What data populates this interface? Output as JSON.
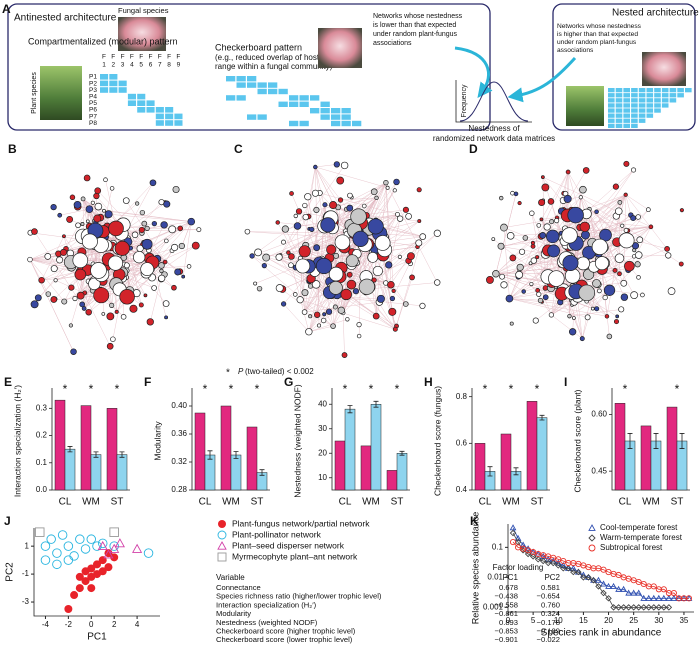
{
  "panel_a": {
    "letter": "A",
    "left_title": "Antinested architecture",
    "fungal_label": "Fungal species",
    "modular_title": "Compartmentalized (modular) pattern",
    "plant_label": "Plant species",
    "col_prefix": "F",
    "cols": [
      "1",
      "2",
      "3",
      "4",
      "5",
      "6",
      "7",
      "8",
      "9"
    ],
    "rows": [
      "P1",
      "P2",
      "P3",
      "P4",
      "P5",
      "P6",
      "P7",
      "P8"
    ],
    "checker_title": "Checkerboard pattern",
    "checker_sub": [
      "(e.g., reduced overlap of host",
      "range within a fungal community)"
    ],
    "lower_text": [
      "Networks whose nestedness",
      "is lower than that expected",
      "under random plant-fungus",
      "associations"
    ],
    "freq_label": "Frequency",
    "dist_label": [
      "Nestedness of",
      "randomized network data matrices"
    ],
    "right_title": "Nested architecture",
    "higher_text": [
      "Networks whose nestedness",
      "is higher than that expected",
      "under random plant-fungus",
      "associations"
    ]
  },
  "network_labels": [
    "B",
    "C",
    "D"
  ],
  "note": [
    "*",
    "P",
    "(two-tailed) < 0.002"
  ],
  "chart_data": [
    {
      "panel": "E",
      "type": "bar",
      "ylabel": "Interaction specialization (H₂′)",
      "categories": [
        "CL",
        "WM",
        "ST"
      ],
      "series": [
        {
          "color": "#e2287f",
          "values": [
            0.33,
            0.31,
            0.3
          ]
        },
        {
          "color": "#8ed4ee",
          "values": [
            0.15,
            0.13,
            0.13
          ],
          "errors": [
            0.01,
            0.01,
            0.01
          ]
        }
      ],
      "annotations": [
        "*",
        "*",
        "*"
      ],
      "ylim": [
        0,
        0.36
      ],
      "yticks": [
        {
          "value": 0,
          "label": "0.0"
        },
        0.1,
        0.2,
        0.3
      ]
    },
    {
      "panel": "F",
      "type": "bar",
      "ylabel": "Modularity",
      "categories": [
        "CL",
        "WM",
        "ST"
      ],
      "series": [
        {
          "color": "#e2287f",
          "values": [
            0.39,
            0.4,
            0.37
          ]
        },
        {
          "color": "#8ed4ee",
          "values": [
            0.33,
            0.33,
            0.305
          ],
          "errors": [
            0.006,
            0.005,
            0.004
          ]
        }
      ],
      "annotations": [
        "*",
        "*",
        "*"
      ],
      "ylim": [
        0.28,
        0.42
      ],
      "yticks": [
        0.28,
        0.32,
        0.36,
        {
          "value": 0.4,
          "label": "0.40"
        }
      ]
    },
    {
      "panel": "G",
      "type": "bar",
      "ylabel": "Nestedness (weighted NODF)",
      "categories": [
        "CL",
        "WM",
        "ST"
      ],
      "series": [
        {
          "color": "#e2287f",
          "values": [
            25,
            23,
            13
          ]
        },
        {
          "color": "#8ed4ee",
          "values": [
            38,
            40,
            20
          ],
          "errors": [
            1.5,
            1.2,
            0.8
          ]
        }
      ],
      "annotations": [
        "*",
        "*",
        "*"
      ],
      "ylim": [
        5,
        45
      ],
      "yticks": [
        10,
        20,
        30,
        40
      ]
    },
    {
      "panel": "H",
      "type": "bar",
      "ylabel": "Checkerboard score (fungus)",
      "categories": [
        "CL",
        "WM",
        "ST"
      ],
      "series": [
        {
          "color": "#e2287f",
          "values": [
            0.6,
            0.64,
            0.78
          ]
        },
        {
          "color": "#8ed4ee",
          "values": [
            0.48,
            0.48,
            0.71
          ],
          "errors": [
            0.02,
            0.015,
            0.01
          ]
        }
      ],
      "annotations": [
        "*",
        "*",
        "*"
      ],
      "ylim": [
        0.4,
        0.82
      ],
      "yticks": [
        0.4,
        0.6,
        0.8
      ]
    },
    {
      "panel": "I",
      "type": "bar",
      "ylabel": "Checkerboard score (plant)",
      "categories": [
        "CL",
        "WM",
        "ST"
      ],
      "series": [
        {
          "color": "#e2287f",
          "values": [
            0.63,
            0.57,
            0.62
          ]
        },
        {
          "color": "#8ed4ee",
          "values": [
            0.53,
            0.53,
            0.53
          ],
          "errors": [
            0.02,
            0.02,
            0.02
          ]
        }
      ],
      "annotations": [
        "*",
        null,
        "*"
      ],
      "ylim": [
        0.4,
        0.66
      ],
      "yticks": [
        0.45,
        {
          "value": 0.6,
          "label": "0.60"
        }
      ]
    },
    {
      "panel": "J",
      "type": "scatter",
      "xlabel": "PC1",
      "ylabel": "PC2",
      "series": [
        {
          "name": "Plant-fungus network/partial network",
          "color": "#e8232a",
          "marker": "circle-filled",
          "x": [
            -2,
            -1,
            -0.5,
            0,
            0.5,
            1,
            1.5,
            0,
            -0.5,
            1,
            0.5,
            -1,
            2,
            1.5,
            0,
            -1.5
          ],
          "y": [
            -3.5,
            -2,
            -1.5,
            -1.2,
            -1,
            -0.8,
            -0.5,
            -0.6,
            -0.8,
            0,
            -0.3,
            -1.2,
            0.2,
            0.5,
            -2,
            -2.5
          ]
        },
        {
          "name": "Plant-pollinator network",
          "color": "#29b5e0",
          "marker": "circle",
          "x": [
            -4,
            -3.5,
            -3,
            -2.5,
            -2,
            -1,
            -0.5,
            0,
            0.5,
            -3,
            -2,
            1,
            2,
            -1.5,
            5,
            -4
          ],
          "y": [
            1,
            1.5,
            0.5,
            1.8,
            1,
            1.5,
            0.8,
            1.5,
            1,
            -0.3,
            0,
            1.2,
            1,
            0.3,
            0.5,
            0
          ]
        },
        {
          "name": "Plant–seed disperser network",
          "color": "#d23fa8",
          "marker": "triangle",
          "x": [
            1,
            2,
            1.5,
            4,
            2.5
          ],
          "y": [
            1,
            0.8,
            0.4,
            0.8,
            1.2
          ]
        },
        {
          "name": "Myrmecophyte plant–ant network",
          "color": "#999999",
          "marker": "square",
          "x": [
            -4.5,
            2
          ],
          "y": [
            2,
            2
          ]
        }
      ],
      "xlim": [
        -5,
        6
      ],
      "ylim": [
        -4,
        2.3
      ],
      "xticks": [
        -4,
        -2,
        0,
        2,
        4
      ],
      "yticks": [
        -3,
        -1,
        1
      ],
      "table": {
        "title": "Factor loading",
        "header": [
          "Variable",
          "PC1",
          "PC2"
        ],
        "rows": [
          [
            "Connectance",
            "0.678",
            "0.581"
          ],
          [
            "Species richness ratio (higher/lower trophic level)",
            "−0.438",
            "−0.654"
          ],
          [
            "Interaction specialization (H₂′)",
            "−0.558",
            "0.760"
          ],
          [
            "Modularity",
            "−0.861",
            "0.324"
          ],
          [
            "Nestedness (weighted NODF)",
            "0.893",
            "−0.178"
          ],
          [
            "Checkerboard score (higher trophic level)",
            "−0.853",
            "−0.189"
          ],
          [
            "Checkerboard score (lower trophic level)",
            "−0.901",
            "−0.022"
          ]
        ]
      }
    },
    {
      "panel": "K",
      "type": "line",
      "xlabel": "Species rank in abundance",
      "ylabel": "Relative species abundance",
      "yscale": "log",
      "x": [
        1,
        2,
        3,
        4,
        5,
        6,
        7,
        8,
        9,
        10,
        11,
        12,
        13,
        14,
        15,
        16,
        17,
        18,
        19,
        20,
        21,
        22,
        23,
        24,
        25,
        26,
        27,
        28,
        29,
        30,
        31,
        32,
        33,
        34,
        35,
        36
      ],
      "series": [
        {
          "name": "Cool-temperate forest",
          "color": "#2f4fb0",
          "marker": "triangle",
          "values": [
            0.45,
            0.2,
            0.12,
            0.09,
            0.07,
            0.06,
            0.05,
            0.04,
            0.035,
            0.03,
            0.025,
            0.02,
            0.02,
            0.015,
            0.012,
            0.01,
            0.008,
            0.008,
            0.006,
            0.005,
            0.005,
            0.004,
            0.004,
            0.003,
            0.003,
            0.003,
            0.002,
            0.002,
            0.002,
            0.002,
            0.002,
            0.002,
            0.002,
            0.002,
            0.002,
            0.002
          ]
        },
        {
          "name": "Warm-temperate forest",
          "color": "#444444",
          "marker": "diamond",
          "values": [
            0.3,
            0.15,
            0.08,
            0.06,
            0.05,
            0.04,
            0.035,
            0.03,
            0.03,
            0.025,
            0.02,
            0.02,
            0.015,
            0.015,
            0.01,
            0.01,
            0.008,
            0.005,
            0.003,
            0.002,
            0.001,
            0.001,
            0.001,
            0.001,
            0.001,
            0.001,
            0.001,
            0.001,
            0.001,
            0.001,
            0.001,
            0.001,
            null,
            null,
            null,
            null
          ]
        },
        {
          "name": "Subtropical forest",
          "color": "#e8322a",
          "marker": "circle",
          "values": [
            0.15,
            0.1,
            0.09,
            0.08,
            0.07,
            0.06,
            0.055,
            0.05,
            0.045,
            0.04,
            0.035,
            0.03,
            0.03,
            0.028,
            0.025,
            0.022,
            0.02,
            0.02,
            0.018,
            0.015,
            0.013,
            0.012,
            0.01,
            0.009,
            0.008,
            0.007,
            0.006,
            0.005,
            0.005,
            0.004,
            0.004,
            0.003,
            0.003,
            0.002,
            0.002,
            0.002
          ]
        }
      ],
      "xlim": [
        0,
        37
      ],
      "ylim": [
        0.0007,
        0.6
      ],
      "xticks": [
        0,
        5,
        10,
        15,
        20,
        25,
        30,
        35
      ],
      "yticks": [
        0.001,
        0.01,
        0.1
      ]
    }
  ]
}
